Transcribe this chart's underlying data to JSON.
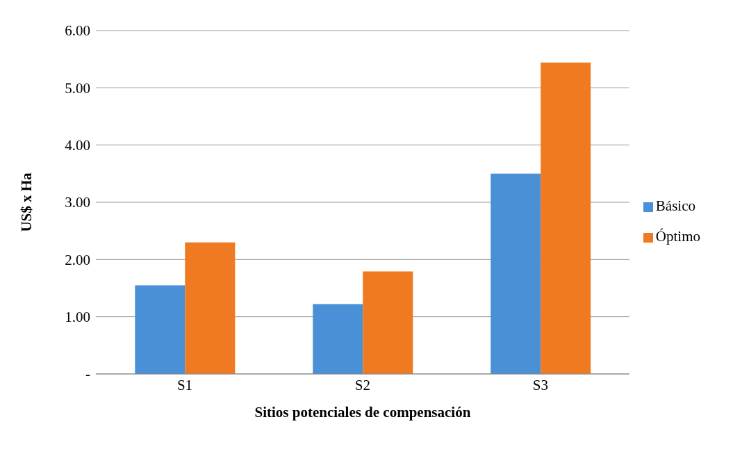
{
  "chart_data": {
    "type": "bar",
    "xlabel": "Sitios potenciales de compensación",
    "ylabel": "US$ x Ha",
    "categories": [
      "S1",
      "S2",
      "S3"
    ],
    "series": [
      {
        "name": "Básico",
        "color": "#4a90d6",
        "values": [
          1.55,
          1.22,
          3.5
        ]
      },
      {
        "name": "Óptimo",
        "color": "#f07a22",
        "values": [
          2.3,
          1.79,
          5.44
        ]
      }
    ],
    "ylim": [
      0,
      6
    ],
    "yticks": [
      {
        "value": 0,
        "label": "-"
      },
      {
        "value": 1,
        "label": "1.00"
      },
      {
        "value": 2,
        "label": "2.00"
      },
      {
        "value": 3,
        "label": "3.00"
      },
      {
        "value": 4,
        "label": "4.00"
      },
      {
        "value": 5,
        "label": "5.00"
      },
      {
        "value": 6,
        "label": "6.00"
      }
    ],
    "grid": "y",
    "legend": "right"
  }
}
